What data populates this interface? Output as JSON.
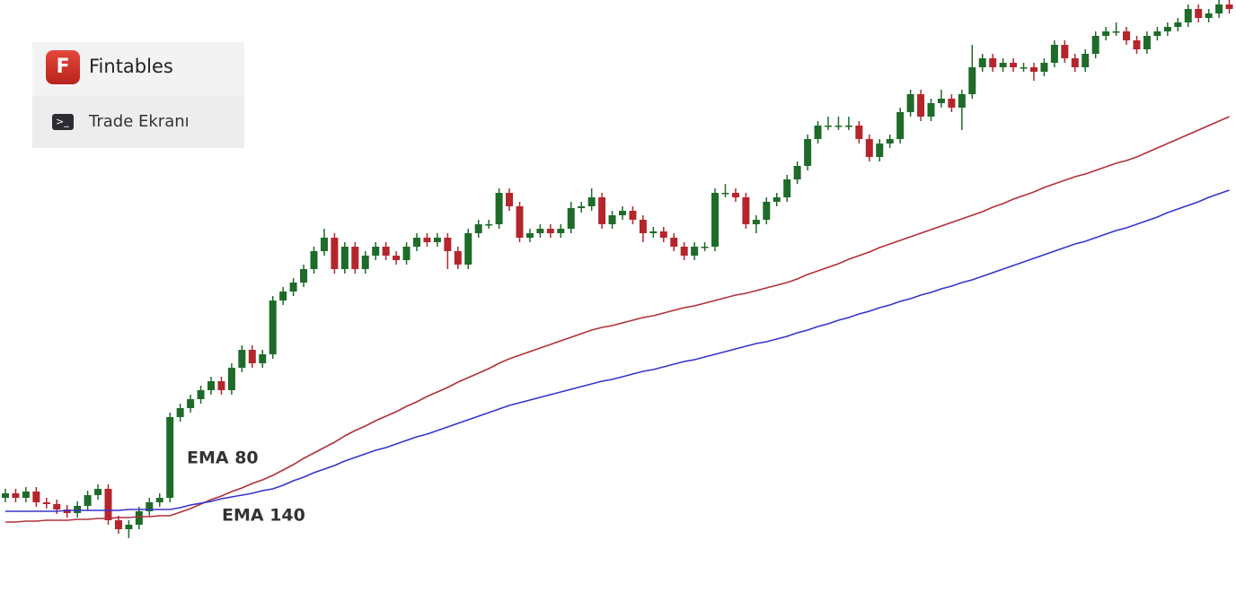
{
  "header": {
    "logo_letter": "F",
    "brand": "Fintables",
    "menu_item": "Trade Ekranı"
  },
  "chart_data": {
    "type": "candlestick",
    "ylim": [
      0,
      660
    ],
    "up_color": "#1e6b2a",
    "down_color": "#b5262c",
    "open": [
      105,
      110,
      105,
      112,
      100,
      98,
      92,
      88,
      96,
      108,
      115,
      80,
      70,
      75,
      90,
      100,
      105,
      195,
      205,
      215,
      225,
      235,
      225,
      250,
      270,
      255,
      265,
      325,
      335,
      345,
      360,
      380,
      395,
      360,
      385,
      360,
      375,
      385,
      375,
      370,
      385,
      395,
      390,
      395,
      380,
      365,
      400,
      410,
      410,
      445,
      430,
      395,
      400,
      405,
      400,
      405,
      428,
      430,
      440,
      410,
      420,
      425,
      415,
      400,
      402,
      395,
      385,
      375,
      385,
      385,
      445,
      445,
      440,
      410,
      415,
      435,
      440,
      460,
      475,
      505,
      520,
      520,
      520,
      520,
      505,
      485,
      500,
      505,
      535,
      555,
      530,
      545,
      550,
      540,
      555,
      585,
      595,
      585,
      590,
      585,
      585,
      580,
      590,
      610,
      595,
      585,
      600,
      620,
      625,
      625,
      615,
      605,
      620,
      625,
      630,
      635,
      650,
      640,
      645,
      655
    ],
    "high": [
      115,
      115,
      117,
      117,
      105,
      103,
      97,
      101,
      113,
      120,
      120,
      85,
      80,
      95,
      105,
      110,
      200,
      210,
      220,
      230,
      240,
      240,
      255,
      275,
      275,
      270,
      330,
      340,
      350,
      365,
      385,
      405,
      400,
      390,
      390,
      380,
      390,
      390,
      380,
      390,
      400,
      400,
      400,
      400,
      385,
      405,
      415,
      415,
      450,
      450,
      435,
      405,
      410,
      410,
      410,
      435,
      435,
      450,
      445,
      425,
      430,
      430,
      420,
      407,
      407,
      400,
      390,
      390,
      390,
      450,
      455,
      450,
      445,
      420,
      440,
      445,
      465,
      480,
      510,
      525,
      530,
      530,
      530,
      525,
      510,
      505,
      510,
      540,
      560,
      560,
      550,
      560,
      555,
      560,
      610,
      600,
      600,
      595,
      595,
      590,
      590,
      595,
      615,
      615,
      600,
      605,
      625,
      630,
      635,
      630,
      620,
      625,
      630,
      635,
      640,
      655,
      655,
      650,
      660,
      660
    ],
    "low": [
      100,
      100,
      100,
      95,
      93,
      87,
      83,
      83,
      91,
      103,
      75,
      65,
      60,
      70,
      85,
      95,
      100,
      190,
      200,
      210,
      220,
      220,
      220,
      245,
      250,
      250,
      260,
      320,
      330,
      340,
      355,
      375,
      355,
      355,
      355,
      355,
      370,
      370,
      365,
      365,
      380,
      385,
      385,
      360,
      360,
      360,
      395,
      405,
      405,
      425,
      390,
      390,
      395,
      395,
      395,
      400,
      423,
      425,
      405,
      405,
      415,
      410,
      390,
      395,
      390,
      380,
      370,
      370,
      380,
      380,
      440,
      435,
      405,
      400,
      410,
      430,
      435,
      455,
      470,
      500,
      515,
      515,
      515,
      500,
      480,
      480,
      495,
      500,
      530,
      525,
      525,
      540,
      535,
      515,
      550,
      580,
      580,
      580,
      580,
      580,
      570,
      575,
      585,
      590,
      580,
      580,
      595,
      615,
      620,
      610,
      600,
      600,
      615,
      620,
      625,
      630,
      635,
      635,
      640,
      645
    ],
    "close": [
      110,
      105,
      112,
      100,
      98,
      92,
      88,
      96,
      108,
      115,
      80,
      70,
      75,
      90,
      100,
      105,
      195,
      205,
      215,
      225,
      235,
      225,
      250,
      270,
      255,
      265,
      325,
      335,
      345,
      360,
      380,
      395,
      360,
      385,
      360,
      375,
      385,
      375,
      370,
      385,
      395,
      390,
      395,
      380,
      365,
      400,
      410,
      410,
      445,
      430,
      395,
      400,
      405,
      400,
      405,
      428,
      430,
      440,
      410,
      420,
      425,
      415,
      400,
      402,
      395,
      385,
      375,
      385,
      385,
      445,
      445,
      440,
      410,
      415,
      435,
      440,
      460,
      475,
      505,
      520,
      520,
      520,
      520,
      505,
      485,
      500,
      505,
      535,
      555,
      530,
      545,
      550,
      540,
      555,
      585,
      595,
      585,
      590,
      585,
      585,
      580,
      590,
      610,
      595,
      585,
      600,
      620,
      625,
      625,
      615,
      605,
      620,
      625,
      630,
      635,
      650,
      640,
      645,
      655,
      650
    ],
    "series": [
      {
        "name": "EMA 80",
        "color": "#b0303a",
        "values": [
          78,
          78,
          79,
          79,
          80,
          80,
          80,
          81,
          81,
          82,
          82,
          83,
          83,
          84,
          84,
          85,
          85,
          89,
          93,
          98,
          103,
          107,
          112,
          116,
          121,
          125,
          130,
          136,
          142,
          149,
          155,
          161,
          167,
          174,
          180,
          185,
          191,
          196,
          201,
          207,
          212,
          218,
          223,
          228,
          234,
          239,
          244,
          249,
          255,
          260,
          264,
          268,
          272,
          276,
          280,
          284,
          288,
          292,
          295,
          297,
          300,
          303,
          306,
          308,
          311,
          314,
          317,
          319,
          322,
          325,
          328,
          331,
          333,
          336,
          339,
          342,
          345,
          349,
          354,
          358,
          362,
          366,
          371,
          375,
          379,
          384,
          388,
          392,
          396,
          400,
          404,
          408,
          412,
          416,
          420,
          424,
          429,
          433,
          438,
          442,
          446,
          451,
          455,
          459,
          463,
          466,
          470,
          474,
          478,
          481,
          485,
          490,
          495,
          500,
          505,
          510,
          515,
          520,
          525,
          530
        ]
      },
      {
        "name": "EMA 140",
        "color": "#3535cc",
        "values": [
          90,
          90,
          90,
          90,
          90,
          90,
          91,
          91,
          91,
          91,
          91,
          91,
          92,
          92,
          92,
          92,
          92,
          94,
          97,
          99,
          101,
          104,
          106,
          108,
          110,
          113,
          115,
          119,
          124,
          128,
          133,
          137,
          141,
          146,
          150,
          154,
          158,
          161,
          165,
          169,
          173,
          176,
          180,
          184,
          188,
          192,
          196,
          200,
          204,
          208,
          211,
          214,
          217,
          220,
          223,
          226,
          229,
          232,
          235,
          237,
          240,
          243,
          246,
          248,
          251,
          254,
          257,
          259,
          262,
          265,
          268,
          271,
          274,
          277,
          279,
          282,
          285,
          289,
          292,
          296,
          299,
          303,
          306,
          310,
          313,
          317,
          320,
          324,
          327,
          331,
          334,
          338,
          341,
          345,
          348,
          352,
          356,
          360,
          364,
          368,
          372,
          376,
          380,
          384,
          388,
          391,
          395,
          399,
          403,
          406,
          410,
          414,
          418,
          423,
          427,
          431,
          435,
          440,
          444,
          448
        ]
      }
    ]
  }
}
